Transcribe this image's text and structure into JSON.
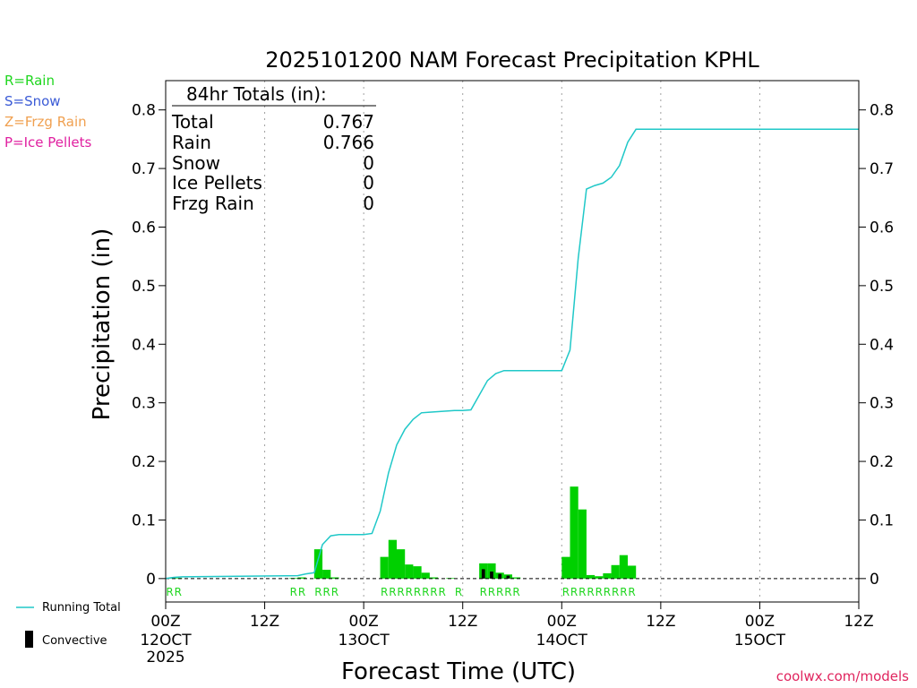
{
  "chart_data": {
    "type": "bar+line",
    "title": "2025101200 NAM Forecast Precipitation KPHL",
    "ylabel": "Precipitation (in)",
    "xlabel": "Forecast Time (UTC)",
    "ylim": [
      -0.04,
      0.85
    ],
    "xlim_hours": [
      0,
      84
    ],
    "y_ticks": [
      "0",
      "0.1",
      "0.2",
      "0.3",
      "0.4",
      "0.5",
      "0.6",
      "0.7",
      "0.8"
    ],
    "y_tick_values": [
      0,
      0.1,
      0.2,
      0.3,
      0.4,
      0.5,
      0.6,
      0.7,
      0.8
    ],
    "x_ticks": [
      {
        "hour": 0,
        "label": "00Z",
        "sub": "12OCT",
        "sub2": "2025"
      },
      {
        "hour": 12,
        "label": "12Z",
        "sub": "",
        "sub2": ""
      },
      {
        "hour": 24,
        "label": "00Z",
        "sub": "13OCT",
        "sub2": ""
      },
      {
        "hour": 36,
        "label": "12Z",
        "sub": "",
        "sub2": ""
      },
      {
        "hour": 48,
        "label": "00Z",
        "sub": "14OCT",
        "sub2": ""
      },
      {
        "hour": 60,
        "label": "12Z",
        "sub": "",
        "sub2": ""
      },
      {
        "hour": 72,
        "label": "00Z",
        "sub": "15OCT",
        "sub2": ""
      },
      {
        "hour": 84,
        "label": "12Z",
        "sub": "",
        "sub2": ""
      }
    ],
    "precip_type_legend": [
      {
        "text": "R=Rain",
        "color": "#1fd61f"
      },
      {
        "text": "S=Snow",
        "color": "#3b5bd6"
      },
      {
        "text": "Z=Frzg Rain",
        "color": "#f0a050"
      },
      {
        "text": "P=Ice Pellets",
        "color": "#e020a0"
      }
    ],
    "series_legend": {
      "running_total": "Running Total",
      "convective": "Convective"
    },
    "colors": {
      "rain": "#00d000",
      "convective": "#000000",
      "running_total": "#20c8c8",
      "grid": "#a0a0a0"
    },
    "totals": {
      "header": "84hr Totals (in):",
      "rows": [
        {
          "label": "Total",
          "value": "0.767"
        },
        {
          "label": "Rain",
          "value": "0.766"
        },
        {
          "label": "Snow",
          "value": "0"
        },
        {
          "label": "Ice Pellets",
          "value": "0"
        },
        {
          "label": "Frzg Rain",
          "value": "0"
        }
      ]
    },
    "bars": [
      {
        "hour": 1,
        "value": 0.001,
        "conv": 0
      },
      {
        "hour": 2,
        "value": 0.001,
        "conv": 0
      },
      {
        "hour": 16,
        "value": 0.001,
        "conv": 0
      },
      {
        "hour": 17,
        "value": 0.002,
        "conv": 0
      },
      {
        "hour": 19,
        "value": 0.05,
        "conv": 0
      },
      {
        "hour": 20,
        "value": 0.015,
        "conv": 0
      },
      {
        "hour": 21,
        "value": 0.002,
        "conv": 0
      },
      {
        "hour": 27,
        "value": 0.037,
        "conv": 0
      },
      {
        "hour": 28,
        "value": 0.066,
        "conv": 0
      },
      {
        "hour": 29,
        "value": 0.05,
        "conv": 0
      },
      {
        "hour": 30,
        "value": 0.024,
        "conv": 0
      },
      {
        "hour": 31,
        "value": 0.021,
        "conv": 0
      },
      {
        "hour": 32,
        "value": 0.01,
        "conv": 0
      },
      {
        "hour": 33,
        "value": 0.002,
        "conv": 0
      },
      {
        "hour": 35,
        "value": 0.001,
        "conv": 0
      },
      {
        "hour": 39,
        "value": 0.026,
        "conv": 0.016
      },
      {
        "hour": 40,
        "value": 0.026,
        "conv": 0.012
      },
      {
        "hour": 41,
        "value": 0.01,
        "conv": 0.008
      },
      {
        "hour": 42,
        "value": 0.007,
        "conv": 0.005
      },
      {
        "hour": 43,
        "value": 0.002,
        "conv": 0
      },
      {
        "hour": 49,
        "value": 0.037,
        "conv": 0
      },
      {
        "hour": 50,
        "value": 0.157,
        "conv": 0
      },
      {
        "hour": 51,
        "value": 0.118,
        "conv": 0
      },
      {
        "hour": 52,
        "value": 0.006,
        "conv": 0
      },
      {
        "hour": 53,
        "value": 0.004,
        "conv": 0
      },
      {
        "hour": 54,
        "value": 0.009,
        "conv": 0
      },
      {
        "hour": 55,
        "value": 0.023,
        "conv": 0
      },
      {
        "hour": 56,
        "value": 0.04,
        "conv": 0
      },
      {
        "hour": 57,
        "value": 0.022,
        "conv": 0
      }
    ],
    "running_total": {
      "hours": [
        0,
        1,
        2,
        16,
        17,
        18,
        19,
        20,
        21,
        24,
        25,
        26,
        27,
        28,
        29,
        30,
        31,
        32,
        33,
        35,
        36,
        37,
        38,
        39,
        40,
        41,
        42,
        43,
        47,
        48,
        49,
        50,
        51,
        52,
        53,
        54,
        55,
        56,
        57,
        84
      ],
      "values": [
        0,
        0.002,
        0.003,
        0.005,
        0.008,
        0.01,
        0.058,
        0.073,
        0.075,
        0.075,
        0.077,
        0.115,
        0.18,
        0.228,
        0.255,
        0.272,
        0.283,
        0.284,
        0.285,
        0.287,
        0.287,
        0.288,
        0.313,
        0.338,
        0.35,
        0.355,
        0.355,
        0.355,
        0.355,
        0.355,
        0.39,
        0.547,
        0.665,
        0.671,
        0.675,
        0.685,
        0.705,
        0.745,
        0.767,
        0.767
      ]
    },
    "type_labels": [
      {
        "hour": 1,
        "text": "R"
      },
      {
        "hour": 2,
        "text": "R"
      },
      {
        "hour": 16,
        "text": "R"
      },
      {
        "hour": 17,
        "text": "R"
      },
      {
        "hour": 19,
        "text": "R"
      },
      {
        "hour": 20,
        "text": "R"
      },
      {
        "hour": 21,
        "text": "R"
      },
      {
        "hour": 27,
        "text": "R"
      },
      {
        "hour": 28,
        "text": "R"
      },
      {
        "hour": 29,
        "text": "R"
      },
      {
        "hour": 30,
        "text": "R"
      },
      {
        "hour": 31,
        "text": "R"
      },
      {
        "hour": 32,
        "text": "R"
      },
      {
        "hour": 33,
        "text": "R"
      },
      {
        "hour": 34,
        "text": "R"
      },
      {
        "hour": 36,
        "text": "R"
      },
      {
        "hour": 39,
        "text": "R"
      },
      {
        "hour": 40,
        "text": "R"
      },
      {
        "hour": 41,
        "text": "R"
      },
      {
        "hour": 42,
        "text": "R"
      },
      {
        "hour": 43,
        "text": "R"
      },
      {
        "hour": 49,
        "text": "R"
      },
      {
        "hour": 50,
        "text": "R"
      },
      {
        "hour": 51,
        "text": "R"
      },
      {
        "hour": 52,
        "text": "R"
      },
      {
        "hour": 53,
        "text": "R"
      },
      {
        "hour": 54,
        "text": "R"
      },
      {
        "hour": 55,
        "text": "R"
      },
      {
        "hour": 56,
        "text": "R"
      },
      {
        "hour": 57,
        "text": "R"
      }
    ]
  },
  "credit": "coolwx.com/models"
}
